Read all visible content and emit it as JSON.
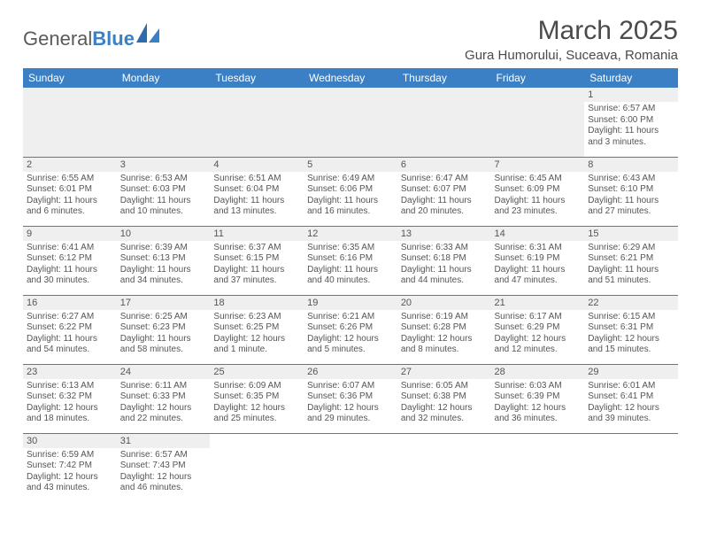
{
  "logo": {
    "text1": "General",
    "text2": "Blue"
  },
  "title": "March 2025",
  "location": "Gura Humorului, Suceava, Romania",
  "colors": {
    "header_bg": "#3b7fc4",
    "header_text": "#ffffff",
    "daynum_bg": "#efefef",
    "border": "#3b7fc4",
    "text": "#4a4a4a",
    "page_bg": "#ffffff"
  },
  "typography": {
    "title_fontsize": 30,
    "location_fontsize": 15,
    "header_fontsize": 12,
    "daynum_fontsize": 11,
    "body_fontsize": 10
  },
  "layout": {
    "columns": 7,
    "rows": 6,
    "first_day_column": 6,
    "num_days": 31
  },
  "weekdays": [
    "Sunday",
    "Monday",
    "Tuesday",
    "Wednesday",
    "Thursday",
    "Friday",
    "Saturday"
  ],
  "days": [
    {
      "n": "1",
      "sunrise": "Sunrise: 6:57 AM",
      "sunset": "Sunset: 6:00 PM",
      "daylight": "Daylight: 11 hours and 3 minutes."
    },
    {
      "n": "2",
      "sunrise": "Sunrise: 6:55 AM",
      "sunset": "Sunset: 6:01 PM",
      "daylight": "Daylight: 11 hours and 6 minutes."
    },
    {
      "n": "3",
      "sunrise": "Sunrise: 6:53 AM",
      "sunset": "Sunset: 6:03 PM",
      "daylight": "Daylight: 11 hours and 10 minutes."
    },
    {
      "n": "4",
      "sunrise": "Sunrise: 6:51 AM",
      "sunset": "Sunset: 6:04 PM",
      "daylight": "Daylight: 11 hours and 13 minutes."
    },
    {
      "n": "5",
      "sunrise": "Sunrise: 6:49 AM",
      "sunset": "Sunset: 6:06 PM",
      "daylight": "Daylight: 11 hours and 16 minutes."
    },
    {
      "n": "6",
      "sunrise": "Sunrise: 6:47 AM",
      "sunset": "Sunset: 6:07 PM",
      "daylight": "Daylight: 11 hours and 20 minutes."
    },
    {
      "n": "7",
      "sunrise": "Sunrise: 6:45 AM",
      "sunset": "Sunset: 6:09 PM",
      "daylight": "Daylight: 11 hours and 23 minutes."
    },
    {
      "n": "8",
      "sunrise": "Sunrise: 6:43 AM",
      "sunset": "Sunset: 6:10 PM",
      "daylight": "Daylight: 11 hours and 27 minutes."
    },
    {
      "n": "9",
      "sunrise": "Sunrise: 6:41 AM",
      "sunset": "Sunset: 6:12 PM",
      "daylight": "Daylight: 11 hours and 30 minutes."
    },
    {
      "n": "10",
      "sunrise": "Sunrise: 6:39 AM",
      "sunset": "Sunset: 6:13 PM",
      "daylight": "Daylight: 11 hours and 34 minutes."
    },
    {
      "n": "11",
      "sunrise": "Sunrise: 6:37 AM",
      "sunset": "Sunset: 6:15 PM",
      "daylight": "Daylight: 11 hours and 37 minutes."
    },
    {
      "n": "12",
      "sunrise": "Sunrise: 6:35 AM",
      "sunset": "Sunset: 6:16 PM",
      "daylight": "Daylight: 11 hours and 40 minutes."
    },
    {
      "n": "13",
      "sunrise": "Sunrise: 6:33 AM",
      "sunset": "Sunset: 6:18 PM",
      "daylight": "Daylight: 11 hours and 44 minutes."
    },
    {
      "n": "14",
      "sunrise": "Sunrise: 6:31 AM",
      "sunset": "Sunset: 6:19 PM",
      "daylight": "Daylight: 11 hours and 47 minutes."
    },
    {
      "n": "15",
      "sunrise": "Sunrise: 6:29 AM",
      "sunset": "Sunset: 6:21 PM",
      "daylight": "Daylight: 11 hours and 51 minutes."
    },
    {
      "n": "16",
      "sunrise": "Sunrise: 6:27 AM",
      "sunset": "Sunset: 6:22 PM",
      "daylight": "Daylight: 11 hours and 54 minutes."
    },
    {
      "n": "17",
      "sunrise": "Sunrise: 6:25 AM",
      "sunset": "Sunset: 6:23 PM",
      "daylight": "Daylight: 11 hours and 58 minutes."
    },
    {
      "n": "18",
      "sunrise": "Sunrise: 6:23 AM",
      "sunset": "Sunset: 6:25 PM",
      "daylight": "Daylight: 12 hours and 1 minute."
    },
    {
      "n": "19",
      "sunrise": "Sunrise: 6:21 AM",
      "sunset": "Sunset: 6:26 PM",
      "daylight": "Daylight: 12 hours and 5 minutes."
    },
    {
      "n": "20",
      "sunrise": "Sunrise: 6:19 AM",
      "sunset": "Sunset: 6:28 PM",
      "daylight": "Daylight: 12 hours and 8 minutes."
    },
    {
      "n": "21",
      "sunrise": "Sunrise: 6:17 AM",
      "sunset": "Sunset: 6:29 PM",
      "daylight": "Daylight: 12 hours and 12 minutes."
    },
    {
      "n": "22",
      "sunrise": "Sunrise: 6:15 AM",
      "sunset": "Sunset: 6:31 PM",
      "daylight": "Daylight: 12 hours and 15 minutes."
    },
    {
      "n": "23",
      "sunrise": "Sunrise: 6:13 AM",
      "sunset": "Sunset: 6:32 PM",
      "daylight": "Daylight: 12 hours and 18 minutes."
    },
    {
      "n": "24",
      "sunrise": "Sunrise: 6:11 AM",
      "sunset": "Sunset: 6:33 PM",
      "daylight": "Daylight: 12 hours and 22 minutes."
    },
    {
      "n": "25",
      "sunrise": "Sunrise: 6:09 AM",
      "sunset": "Sunset: 6:35 PM",
      "daylight": "Daylight: 12 hours and 25 minutes."
    },
    {
      "n": "26",
      "sunrise": "Sunrise: 6:07 AM",
      "sunset": "Sunset: 6:36 PM",
      "daylight": "Daylight: 12 hours and 29 minutes."
    },
    {
      "n": "27",
      "sunrise": "Sunrise: 6:05 AM",
      "sunset": "Sunset: 6:38 PM",
      "daylight": "Daylight: 12 hours and 32 minutes."
    },
    {
      "n": "28",
      "sunrise": "Sunrise: 6:03 AM",
      "sunset": "Sunset: 6:39 PM",
      "daylight": "Daylight: 12 hours and 36 minutes."
    },
    {
      "n": "29",
      "sunrise": "Sunrise: 6:01 AM",
      "sunset": "Sunset: 6:41 PM",
      "daylight": "Daylight: 12 hours and 39 minutes."
    },
    {
      "n": "30",
      "sunrise": "Sunrise: 6:59 AM",
      "sunset": "Sunset: 7:42 PM",
      "daylight": "Daylight: 12 hours and 43 minutes."
    },
    {
      "n": "31",
      "sunrise": "Sunrise: 6:57 AM",
      "sunset": "Sunset: 7:43 PM",
      "daylight": "Daylight: 12 hours and 46 minutes."
    }
  ]
}
